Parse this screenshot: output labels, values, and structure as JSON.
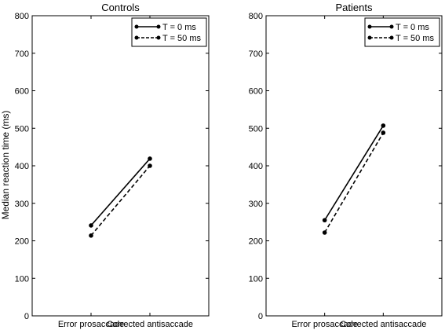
{
  "figure": {
    "ylabel": "Median reaction time (ms)"
  },
  "chart_data": [
    {
      "type": "line",
      "title": "Controls",
      "xlabel": "",
      "ylabel": "Median reaction time (ms)",
      "categories": [
        "Error prosaccade",
        "Corrected antisaccade"
      ],
      "ylim": [
        0,
        800
      ],
      "yticks": [
        0,
        100,
        200,
        300,
        400,
        500,
        600,
        700,
        800
      ],
      "grid": false,
      "legend_position": "top-right",
      "series": [
        {
          "name": "T = 0 ms",
          "style": "solid",
          "values": [
            241,
            419
          ]
        },
        {
          "name": "T = 50 ms",
          "style": "dashed",
          "values": [
            214,
            400
          ]
        }
      ]
    },
    {
      "type": "line",
      "title": "Patients",
      "xlabel": "",
      "ylabel": "",
      "categories": [
        "Error prosaccade",
        "Corrected antisaccade"
      ],
      "ylim": [
        0,
        800
      ],
      "yticks": [
        0,
        100,
        200,
        300,
        400,
        500,
        600,
        700,
        800
      ],
      "grid": false,
      "legend_position": "top-right",
      "series": [
        {
          "name": "T = 0 ms",
          "style": "solid",
          "values": [
            255,
            507
          ]
        },
        {
          "name": "T = 50 ms",
          "style": "dashed",
          "values": [
            222,
            488
          ]
        }
      ]
    }
  ]
}
